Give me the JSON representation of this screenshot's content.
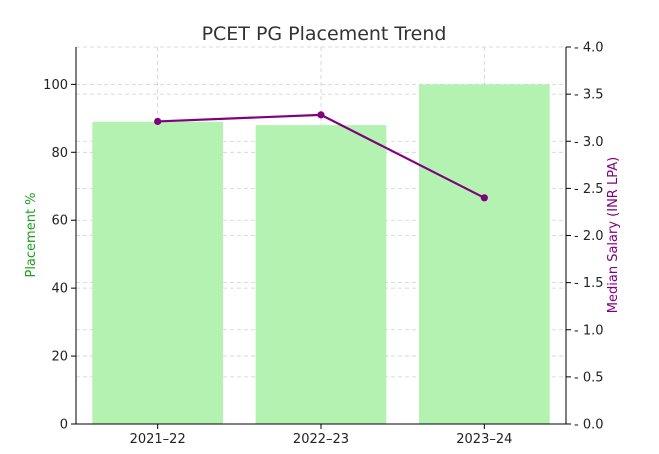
{
  "chart_data": {
    "type": "bar+line",
    "title": "PCET PG Placement Trend",
    "categories": [
      "2021–22",
      "2022–23",
      "2023–24"
    ],
    "series": [
      {
        "name": "Placement %",
        "type": "bar",
        "axis": "left",
        "values": [
          89,
          88,
          100
        ],
        "color": "#b3f2b0"
      },
      {
        "name": "Median Salary (INR LPA)",
        "type": "line",
        "axis": "right",
        "values": [
          3.21,
          3.28,
          2.4
        ],
        "color": "#800080"
      }
    ],
    "y_left": {
      "label": "Placement %",
      "label_color": "#1f9e1f",
      "range": [
        0,
        111
      ],
      "ticks": [
        0,
        20,
        40,
        60,
        80,
        100
      ]
    },
    "y_right": {
      "label": "Median Salary (INR LPA)",
      "label_color": "#800080",
      "range": [
        0,
        4.0
      ],
      "ticks": [
        "0.0",
        "0.5",
        "1.0",
        "1.5",
        "2.0",
        "2.5",
        "3.0",
        "3.5",
        "4.0"
      ]
    },
    "grid": true,
    "legend": "none"
  }
}
